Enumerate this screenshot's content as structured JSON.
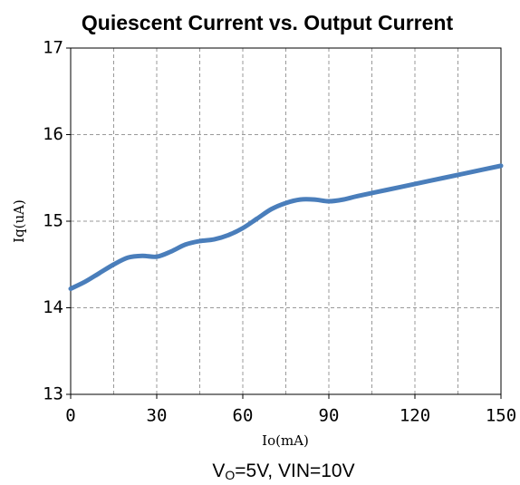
{
  "chart_data": {
    "type": "line",
    "title": "Quiescent Current vs. Output Current",
    "x_label": "Io(mA)",
    "y_label": "Iq(uA)",
    "caption": [
      "V",
      "O",
      "=5V, VIN=10V"
    ],
    "x": [
      0,
      5,
      10,
      15,
      20,
      25,
      30,
      35,
      40,
      45,
      50,
      55,
      60,
      65,
      70,
      75,
      80,
      85,
      90,
      95,
      100,
      110,
      120,
      130,
      140,
      150
    ],
    "series": [
      {
        "name": "Iq",
        "color": "#4a7ebb",
        "values": [
          14.22,
          14.3,
          14.4,
          14.5,
          14.58,
          14.6,
          14.59,
          14.65,
          14.73,
          14.77,
          14.79,
          14.84,
          14.92,
          15.03,
          15.14,
          15.21,
          15.25,
          15.25,
          15.23,
          15.25,
          15.29,
          15.36,
          15.43,
          15.5,
          15.57,
          15.64
        ]
      }
    ],
    "xlim": [
      0,
      150
    ],
    "xticks": [
      0,
      30,
      60,
      90,
      120,
      150
    ],
    "x_minor_ticks": [
      15,
      45,
      75,
      105,
      135
    ],
    "ylim": [
      13,
      17
    ],
    "yticks": [
      13,
      14,
      15,
      16,
      17
    ],
    "grid": true
  }
}
